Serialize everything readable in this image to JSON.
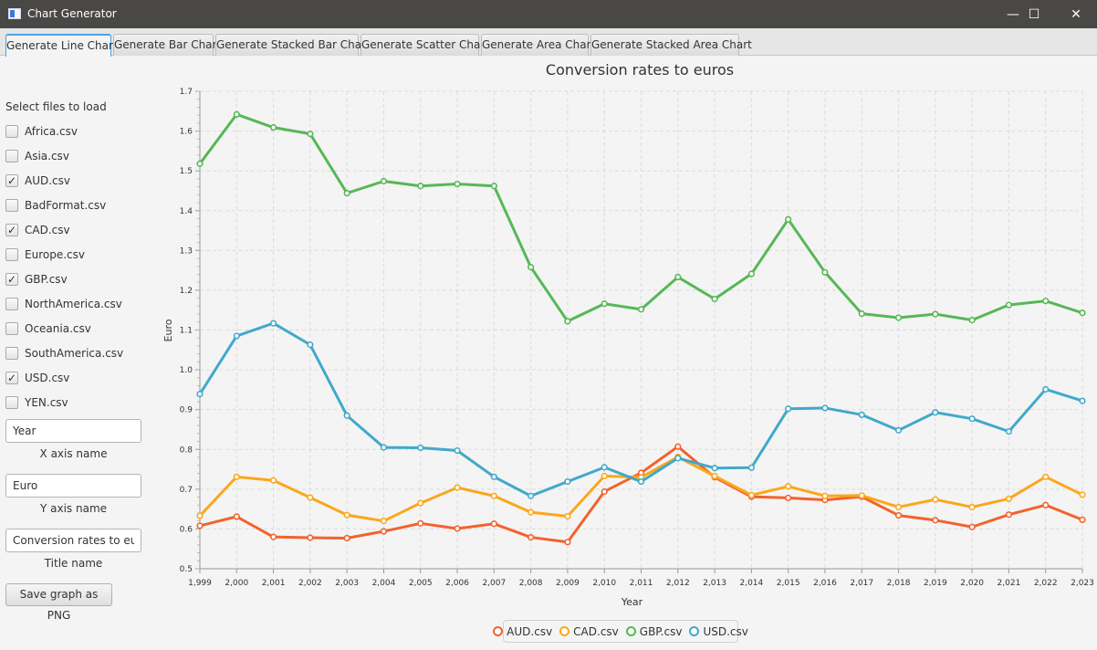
{
  "window": {
    "title": "Chart Generator",
    "minimize_glyph": "—",
    "maximize_glyph": "☐",
    "close_glyph": "✕"
  },
  "tabs": [
    {
      "label": "Generate Line Chart",
      "active": true
    },
    {
      "label": "Generate Bar Chart"
    },
    {
      "label": "Generate Stacked Bar Chart"
    },
    {
      "label": "Generate Scatter Chart"
    },
    {
      "label": "Generate Area Chart"
    },
    {
      "label": "Generate Stacked Area Chart"
    }
  ],
  "sidebar": {
    "heading": "Select files to load",
    "check_glyph": "✓",
    "files": [
      {
        "label": "Africa.csv",
        "checked": false
      },
      {
        "label": "Asia.csv",
        "checked": false
      },
      {
        "label": "AUD.csv",
        "checked": true
      },
      {
        "label": "BadFormat.csv",
        "checked": false
      },
      {
        "label": "CAD.csv",
        "checked": true
      },
      {
        "label": "Europe.csv",
        "checked": false
      },
      {
        "label": "GBP.csv",
        "checked": true
      },
      {
        "label": "NorthAmerica.csv",
        "checked": false
      },
      {
        "label": "Oceania.csv",
        "checked": false
      },
      {
        "label": "SouthAmerica.csv",
        "checked": false
      },
      {
        "label": "USD.csv",
        "checked": true
      },
      {
        "label": "YEN.csv",
        "checked": false
      }
    ],
    "x_axis_field": {
      "value": "Year",
      "caption": "X axis name"
    },
    "y_axis_field": {
      "value": "Euro",
      "caption": "Y axis name"
    },
    "title_field": {
      "value": "Conversion rates to euros",
      "caption": "Title name"
    },
    "save_button": "Save graph as PNG"
  },
  "chart_data": {
    "type": "line",
    "title": "Conversion rates to euros",
    "xlabel": "Year",
    "ylabel": "Euro",
    "ylim": [
      0.5,
      1.7
    ],
    "xlim": [
      1999,
      2023
    ],
    "grid": true,
    "legend_position": "bottom",
    "x_tick_labels": [
      "1,999",
      "2,000",
      "2,001",
      "2,002",
      "2,003",
      "2,004",
      "2,005",
      "2,006",
      "2,007",
      "2,008",
      "2,009",
      "2,010",
      "2,011",
      "2,012",
      "2,013",
      "2,014",
      "2,015",
      "2,016",
      "2,017",
      "2,018",
      "2,019",
      "2,020",
      "2,021",
      "2,022",
      "2,023"
    ],
    "y_tick_labels": [
      "0.5",
      "0.6",
      "0.7",
      "0.8",
      "0.9",
      "1.0",
      "1.1",
      "1.2",
      "1.3",
      "1.4",
      "1.5",
      "1.6",
      "1.7"
    ],
    "x": [
      1999,
      2000,
      2001,
      2002,
      2003,
      2004,
      2005,
      2006,
      2007,
      2008,
      2009,
      2010,
      2011,
      2012,
      2013,
      2014,
      2015,
      2016,
      2017,
      2018,
      2019,
      2020,
      2021,
      2022,
      2023
    ],
    "series": [
      {
        "name": "AUD.csv",
        "color": "#f3622d",
        "values": [
          0.608,
          0.631,
          0.58,
          0.578,
          0.577,
          0.594,
          0.614,
          0.601,
          0.613,
          0.579,
          0.567,
          0.694,
          0.741,
          0.807,
          0.73,
          0.681,
          0.678,
          0.673,
          0.681,
          0.634,
          0.622,
          0.605,
          0.636,
          0.66,
          0.623
        ]
      },
      {
        "name": "CAD.csv",
        "color": "#fba71b",
        "values": [
          0.633,
          0.731,
          0.722,
          0.679,
          0.635,
          0.62,
          0.665,
          0.704,
          0.683,
          0.642,
          0.632,
          0.733,
          0.73,
          0.781,
          0.733,
          0.685,
          0.707,
          0.683,
          0.684,
          0.655,
          0.674,
          0.655,
          0.676,
          0.731,
          0.686
        ]
      },
      {
        "name": "GBP.csv",
        "color": "#57b757",
        "values": [
          1.518,
          1.642,
          1.609,
          1.593,
          1.444,
          1.474,
          1.462,
          1.467,
          1.462,
          1.258,
          1.122,
          1.166,
          1.152,
          1.233,
          1.178,
          1.241,
          1.378,
          1.245,
          1.141,
          1.131,
          1.14,
          1.125,
          1.163,
          1.173,
          1.143
        ]
      },
      {
        "name": "USD.csv",
        "color": "#41a9c9",
        "values": [
          0.939,
          1.085,
          1.117,
          1.063,
          0.885,
          0.805,
          0.804,
          0.797,
          0.731,
          0.683,
          0.719,
          0.755,
          0.719,
          0.778,
          0.753,
          0.754,
          0.902,
          0.904,
          0.887,
          0.848,
          0.893,
          0.877,
          0.845,
          0.951,
          0.922
        ]
      }
    ]
  }
}
